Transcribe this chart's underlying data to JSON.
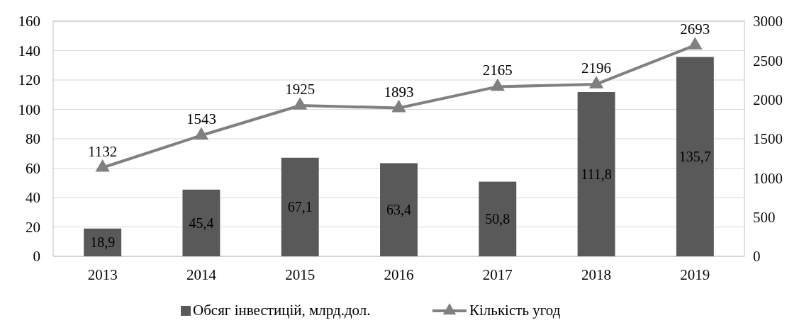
{
  "chart_data": {
    "type": "bar",
    "categories": [
      "2013",
      "2014",
      "2015",
      "2016",
      "2017",
      "2018",
      "2019"
    ],
    "series": [
      {
        "name": "Обсяг інвестицій, млрд.дол.",
        "color": "#595959",
        "values": [
          18.9,
          45.4,
          67.1,
          63.4,
          50.8,
          111.8,
          135.7
        ],
        "value_labels": [
          "18,9",
          "45,4",
          "67,1",
          "63,4",
          "50,8",
          "111,8",
          "135,7"
        ]
      },
      {
        "name": "Кількість угод",
        "type": "line",
        "axis": "y2",
        "color": "#808080",
        "marker": "triangle",
        "values": [
          1132,
          1543,
          1925,
          1893,
          2165,
          2196,
          2693
        ],
        "value_labels": [
          "1132",
          "1543",
          "1925",
          "1893",
          "2165",
          "2196",
          "2693"
        ]
      }
    ],
    "ylim": [
      0,
      160
    ],
    "yticks": [
      0,
      20,
      40,
      60,
      80,
      100,
      120,
      140,
      160
    ],
    "y2lim": [
      0,
      3000
    ],
    "y2ticks": [
      0,
      500,
      1000,
      1500,
      2000,
      2500,
      3000
    ],
    "grid": "y",
    "legend": "bottom"
  }
}
